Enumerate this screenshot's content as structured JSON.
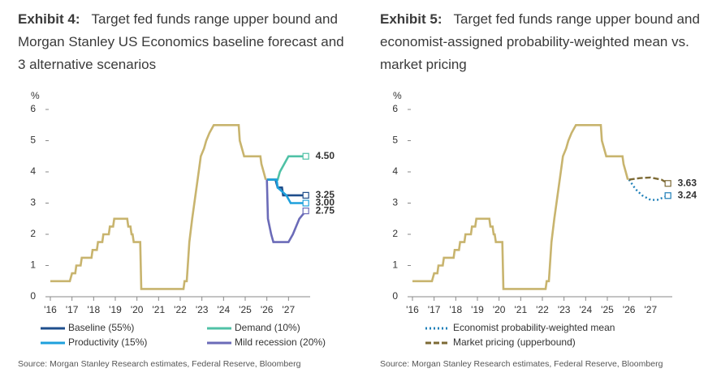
{
  "chart_data": [
    {
      "type": "line",
      "exhibit": "Exhibit 4:",
      "title": "Target fed funds range upper bound and Morgan Stanley US Economics baseline forecast and 3 alternative scenarios",
      "ylabel": "%",
      "ylim": [
        0,
        6
      ],
      "yticks": [
        0,
        1,
        2,
        3,
        4,
        5,
        6
      ],
      "xlim": [
        2016,
        2028
      ],
      "xticks": [
        {
          "value": 2016,
          "label": "'16"
        },
        {
          "value": 2017,
          "label": "'17"
        },
        {
          "value": 2018,
          "label": "'18"
        },
        {
          "value": 2019,
          "label": "'19"
        },
        {
          "value": 2020,
          "label": "'20"
        },
        {
          "value": 2021,
          "label": "'21"
        },
        {
          "value": 2022,
          "label": "'22"
        },
        {
          "value": 2023,
          "label": "'23"
        },
        {
          "value": 2024,
          "label": "'24"
        },
        {
          "value": 2025,
          "label": "'25"
        },
        {
          "value": 2026,
          "label": "'26"
        },
        {
          "value": 2027,
          "label": "'27"
        }
      ],
      "legend_columns": 2,
      "series": [
        {
          "color": "#c8b46e",
          "line_style": "solid",
          "x": [
            2016.0,
            2016.9,
            2017.0,
            2017.15,
            2017.2,
            2017.4,
            2017.45,
            2017.9,
            2017.95,
            2018.15,
            2018.2,
            2018.4,
            2018.45,
            2018.7,
            2018.75,
            2018.9,
            2018.95,
            2019.55,
            2019.6,
            2019.7,
            2019.75,
            2019.8,
            2019.85,
            2020.15,
            2020.2,
            2022.15,
            2022.2,
            2022.3,
            2022.35,
            2022.42,
            2022.55,
            2022.7,
            2022.85,
            2022.95,
            2023.1,
            2023.2,
            2023.35,
            2023.55,
            2024.7,
            2024.75,
            2024.85,
            2024.95,
            2025.7,
            2025.75,
            2025.85,
            2025.95
          ],
          "values": [
            0.5,
            0.5,
            0.75,
            0.75,
            1.0,
            1.0,
            1.25,
            1.25,
            1.5,
            1.5,
            1.75,
            1.75,
            2.0,
            2.0,
            2.25,
            2.25,
            2.5,
            2.5,
            2.25,
            2.25,
            2.0,
            2.0,
            1.75,
            1.75,
            0.25,
            0.25,
            0.5,
            0.5,
            1.0,
            1.75,
            2.5,
            3.25,
            4.0,
            4.5,
            4.75,
            5.0,
            5.25,
            5.5,
            5.5,
            5.0,
            4.75,
            4.5,
            4.5,
            4.25,
            4.0,
            3.75
          ]
        },
        {
          "name": "Baseline (55%)",
          "color": "#1f4e8c",
          "line_style": "solid",
          "x": [
            2026.0,
            2026.4,
            2026.5,
            2026.7,
            2026.75,
            2027.8
          ],
          "values": [
            3.75,
            3.75,
            3.5,
            3.5,
            3.25,
            3.25
          ],
          "value_labels": [
            null,
            null,
            null,
            null,
            null,
            "3.25"
          ]
        },
        {
          "name": "Demand (10%)",
          "color": "#4fc1a6",
          "line_style": "solid",
          "x": [
            2026.0,
            2026.5,
            2026.6,
            2026.8,
            2027.0,
            2027.8
          ],
          "values": [
            3.75,
            3.75,
            4.0,
            4.25,
            4.5,
            4.5
          ],
          "value_labels": [
            null,
            null,
            null,
            null,
            null,
            "4.50"
          ]
        },
        {
          "name": "Productivity (15%)",
          "color": "#1ea0dc",
          "line_style": "solid",
          "x": [
            2026.0,
            2026.45,
            2026.5,
            2026.9,
            2027.1,
            2027.8
          ],
          "values": [
            3.75,
            3.75,
            3.5,
            3.25,
            3.0,
            3.0
          ],
          "value_labels": [
            null,
            null,
            null,
            null,
            null,
            "3.00"
          ]
        },
        {
          "name": "Mild recession (20%)",
          "color": "#6b6bb8",
          "line_style": "solid",
          "x": [
            2026.0,
            2026.05,
            2026.2,
            2026.3,
            2027.0,
            2027.2,
            2027.35,
            2027.5,
            2027.8
          ],
          "values": [
            3.75,
            2.5,
            2.0,
            1.75,
            1.75,
            2.0,
            2.25,
            2.5,
            2.75
          ],
          "value_labels": [
            null,
            null,
            null,
            null,
            null,
            null,
            null,
            null,
            "2.75"
          ]
        }
      ],
      "source": "Source: Morgan Stanley Research estimates, Federal Reserve, Bloomberg"
    },
    {
      "type": "line",
      "exhibit": "Exhibit 5:",
      "title": "Target fed funds range upper bound and economist-assigned probability-weighted mean vs. market pricing",
      "ylabel": "%",
      "ylim": [
        0,
        6
      ],
      "yticks": [
        0,
        1,
        2,
        3,
        4,
        5,
        6
      ],
      "xlim": [
        2016,
        2028
      ],
      "xticks": [
        {
          "value": 2016,
          "label": "'16"
        },
        {
          "value": 2017,
          "label": "'17"
        },
        {
          "value": 2018,
          "label": "'18"
        },
        {
          "value": 2019,
          "label": "'19"
        },
        {
          "value": 2020,
          "label": "'20"
        },
        {
          "value": 2021,
          "label": "'21"
        },
        {
          "value": 2022,
          "label": "'22"
        },
        {
          "value": 2023,
          "label": "'23"
        },
        {
          "value": 2024,
          "label": "'24"
        },
        {
          "value": 2025,
          "label": "'25"
        },
        {
          "value": 2026,
          "label": "'26"
        },
        {
          "value": 2027,
          "label": "'27"
        }
      ],
      "legend_columns": 1,
      "series": [
        {
          "color": "#c8b46e",
          "line_style": "solid",
          "x": [
            2016.0,
            2016.9,
            2017.0,
            2017.15,
            2017.2,
            2017.4,
            2017.45,
            2017.9,
            2017.95,
            2018.15,
            2018.2,
            2018.4,
            2018.45,
            2018.7,
            2018.75,
            2018.9,
            2018.95,
            2019.55,
            2019.6,
            2019.7,
            2019.75,
            2019.8,
            2019.85,
            2020.15,
            2020.2,
            2022.15,
            2022.2,
            2022.3,
            2022.35,
            2022.42,
            2022.55,
            2022.7,
            2022.85,
            2022.95,
            2023.1,
            2023.2,
            2023.35,
            2023.55,
            2024.7,
            2024.75,
            2024.85,
            2024.95,
            2025.7,
            2025.75,
            2025.85,
            2025.95
          ],
          "values": [
            0.5,
            0.5,
            0.75,
            0.75,
            1.0,
            1.0,
            1.25,
            1.25,
            1.5,
            1.5,
            1.75,
            1.75,
            2.0,
            2.0,
            2.25,
            2.25,
            2.5,
            2.5,
            2.25,
            2.25,
            2.0,
            2.0,
            1.75,
            1.75,
            0.25,
            0.25,
            0.5,
            0.5,
            1.0,
            1.75,
            2.5,
            3.25,
            4.0,
            4.5,
            4.75,
            5.0,
            5.25,
            5.5,
            5.5,
            5.0,
            4.75,
            4.5,
            4.5,
            4.25,
            4.0,
            3.75
          ]
        },
        {
          "name": "Economist probability-weighted mean",
          "color": "#1e7fb8",
          "line_style": "dotted",
          "x": [
            2026.0,
            2026.3,
            2026.6,
            2027.0,
            2027.3,
            2027.8
          ],
          "values": [
            3.75,
            3.45,
            3.25,
            3.1,
            3.1,
            3.24
          ],
          "value_labels": [
            null,
            null,
            null,
            null,
            null,
            "3.24"
          ]
        },
        {
          "name": "Market pricing (upperbound)",
          "color": "#7d6a35",
          "line_style": "dashed",
          "x": [
            2026.0,
            2026.5,
            2027.0,
            2027.5,
            2027.8
          ],
          "values": [
            3.75,
            3.8,
            3.82,
            3.75,
            3.63
          ],
          "value_labels": [
            null,
            null,
            null,
            null,
            "3.63"
          ]
        }
      ],
      "source": "Source: Morgan Stanley Research estimates, Federal Reserve, Bloomberg"
    }
  ]
}
